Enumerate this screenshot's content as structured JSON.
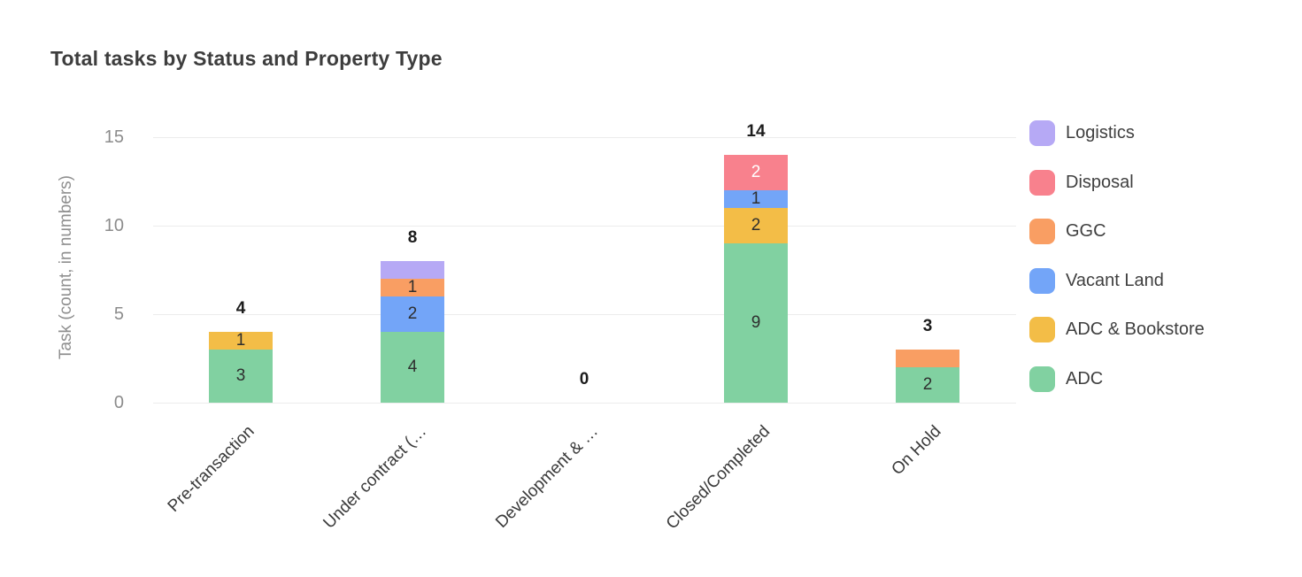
{
  "title": "Total tasks by Status and Property Type",
  "chart_data": {
    "type": "bar",
    "stacked": true,
    "title": "Total tasks by Status and Property Type",
    "xlabel": "",
    "ylabel": "Task (count, in numbers)",
    "ylim": [
      0,
      15
    ],
    "yticks": [
      0,
      5,
      10,
      15
    ],
    "grid": true,
    "legend_position": "right",
    "categories": [
      "Pre-transaction",
      "Under contract (…",
      "Development & …",
      "Closed/Completed",
      "On Hold"
    ],
    "totals": [
      4,
      8,
      0,
      14,
      3
    ],
    "series": [
      {
        "name": "ADC",
        "color": "#81d1a1",
        "values": [
          3,
          4,
          0,
          9,
          2
        ],
        "labels": [
          "3",
          "4",
          "",
          "9",
          "2"
        ],
        "label_color": "#2e2e2e"
      },
      {
        "name": "ADC & Bookstore",
        "color": "#f3bd47",
        "values": [
          1,
          0,
          0,
          2,
          0
        ],
        "labels": [
          "1",
          "",
          "",
          "2",
          ""
        ],
        "label_color": "#2e2e2e"
      },
      {
        "name": "Vacant Land",
        "color": "#73a5f8",
        "values": [
          0,
          2,
          0,
          1,
          0
        ],
        "labels": [
          "",
          "2",
          "",
          "1",
          ""
        ],
        "label_color": "#2e2e2e"
      },
      {
        "name": "GGC",
        "color": "#f99e63",
        "values": [
          0,
          1,
          0,
          0,
          1
        ],
        "labels": [
          "",
          "1",
          "",
          "",
          ""
        ],
        "label_color": "#2e2e2e"
      },
      {
        "name": "Disposal",
        "color": "#f8818d",
        "values": [
          0,
          0,
          0,
          2,
          0
        ],
        "labels": [
          "",
          "",
          "",
          "2",
          ""
        ],
        "label_color": "#ffffff"
      },
      {
        "name": "Logistics",
        "color": "#b6a9f5",
        "values": [
          0,
          1,
          0,
          0,
          0
        ],
        "labels": [
          "",
          "",
          "",
          "",
          ""
        ],
        "label_color": "#2e2e2e"
      }
    ],
    "legend": [
      {
        "label": "Logistics",
        "color": "#b6a9f5"
      },
      {
        "label": "Disposal",
        "color": "#f8818d"
      },
      {
        "label": "GGC",
        "color": "#f99e63"
      },
      {
        "label": "Vacant Land",
        "color": "#73a5f8"
      },
      {
        "label": "ADC & Bookstore",
        "color": "#f3bd47"
      },
      {
        "label": "ADC",
        "color": "#81d1a1"
      }
    ]
  },
  "colors": {
    "background": "#ffffff",
    "title_text": "#3d3d3d",
    "axis_text": "#8c8c8c",
    "category_text": "#3a3a3a",
    "total_text": "#1c1c1c",
    "gridline": "#ececec"
  }
}
